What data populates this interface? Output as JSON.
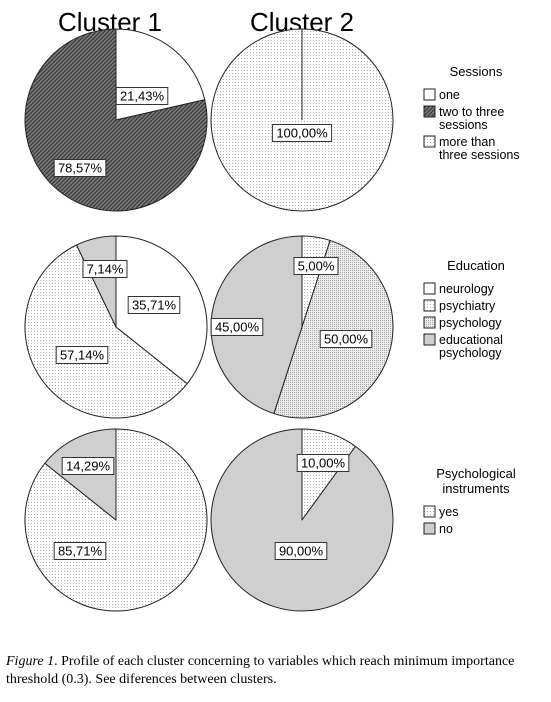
{
  "columns": [
    "Cluster 1",
    "Cluster 2"
  ],
  "colors": {
    "stroke": "#222222",
    "dark_hatch": "#555555",
    "light_dots": "#aaaaaa",
    "gray_fill": "#cfcfcf",
    "white": "#ffffff"
  },
  "chart_data": [
    {
      "type": "pie",
      "legend_title": "Sessions",
      "categories": [
        "one",
        "two to three sessions",
        "more than three sessions"
      ],
      "legend_labels": [
        [
          "one"
        ],
        [
          "two to three",
          "sessions"
        ],
        [
          "more than",
          "three sessions"
        ]
      ],
      "patterns": [
        "white",
        "dark_hatch",
        "light_dots"
      ],
      "clusters": [
        {
          "name": "Cluster 1",
          "values": [
            21.43,
            78.57,
            0
          ],
          "labels": [
            "21,43%",
            "78,57%",
            ""
          ]
        },
        {
          "name": "Cluster 2",
          "values": [
            0,
            0,
            100
          ],
          "labels": [
            "",
            "",
            "100,00%"
          ]
        }
      ]
    },
    {
      "type": "pie",
      "legend_title": "Education",
      "categories": [
        "neurology",
        "psychiatry",
        "psychology",
        "educational psychology"
      ],
      "legend_labels": [
        [
          "neurology"
        ],
        [
          "psychiatry"
        ],
        [
          "psychology"
        ],
        [
          "educational",
          "psychology"
        ]
      ],
      "patterns": [
        "white",
        "light_dots",
        "dense_dots",
        "gray"
      ],
      "clusters": [
        {
          "name": "Cluster 1",
          "values": [
            35.71,
            57.14,
            0,
            7.14
          ],
          "labels": [
            "35,71%",
            "57,14%",
            "",
            "7,14%"
          ]
        },
        {
          "name": "Cluster 2",
          "values": [
            0,
            5.0,
            50.0,
            45.0
          ],
          "labels": [
            "",
            "5,00%",
            "50,00%",
            "45,00%"
          ]
        }
      ]
    },
    {
      "type": "pie",
      "legend_title": "Psychological instruments",
      "legend_title_lines": [
        "Psychological",
        "instruments"
      ],
      "categories": [
        "yes",
        "no"
      ],
      "legend_labels": [
        [
          "yes"
        ],
        [
          "no"
        ]
      ],
      "patterns": [
        "light_dots",
        "gray"
      ],
      "clusters": [
        {
          "name": "Cluster 1",
          "values": [
            85.71,
            14.29
          ],
          "labels": [
            "85,71%",
            "14,29%"
          ]
        },
        {
          "name": "Cluster 2",
          "values": [
            10.0,
            90.0
          ],
          "labels": [
            "10,00%",
            "90,00%"
          ]
        }
      ]
    }
  ],
  "caption": {
    "label": "Figure 1",
    "text": ". Profile of each cluster concerning to variables which reach minimum importance threshold (0.3). See diferences between clusters."
  }
}
